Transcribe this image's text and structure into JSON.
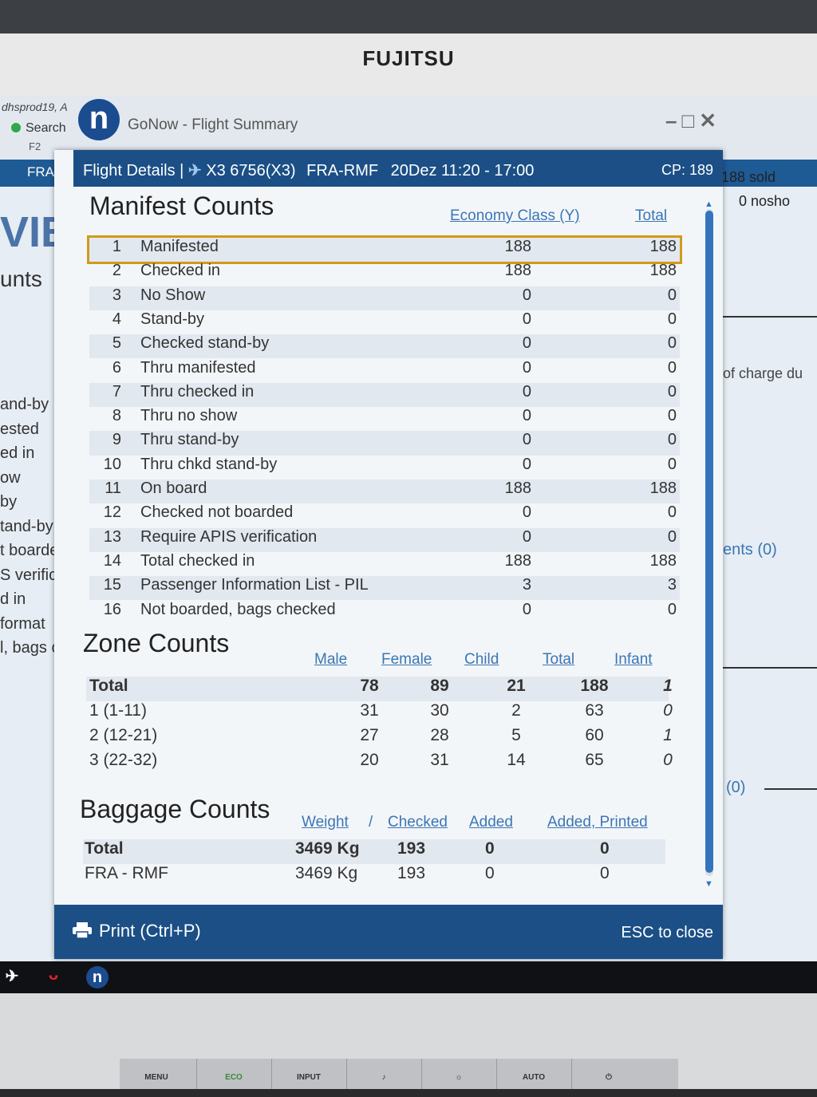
{
  "bezel": {
    "brand": "FUJITSU"
  },
  "background_app": {
    "user": "dhsprod19, A",
    "search": "Search",
    "search_key": "F2",
    "app_title": "GoNow - Flight Summary",
    "route": "FRA-R",
    "sold": "188 sold",
    "nosho": "0 nosho",
    "heading_fragment": "VIE",
    "counts_fragment": "unts",
    "left_fragments": [
      "and-by",
      "ested",
      "ed in",
      "ow",
      "by",
      "tand-by",
      "t boarde",
      "S verific",
      "d in",
      "format",
      "l, bags c"
    ],
    "right_fragment_charge": "of charge du",
    "right_fragment_ents": "ents (0)",
    "right_fragment_zero": "(0)"
  },
  "dialog": {
    "title_prefix": "Flight Details |",
    "flight": "X3 6756(X3)",
    "route": "FRA-RMF",
    "datetime": "20Dez 11:20 - 17:00",
    "cp": "CP: 189",
    "manifest": {
      "title": "Manifest Counts",
      "col_economy": "Economy Class (Y)",
      "col_total": "Total",
      "rows": [
        {
          "n": "1",
          "label": "Manifested",
          "economy": "188",
          "total": "188"
        },
        {
          "n": "2",
          "label": "Checked in",
          "economy": "188",
          "total": "188"
        },
        {
          "n": "3",
          "label": "No Show",
          "economy": "0",
          "total": "0"
        },
        {
          "n": "4",
          "label": "Stand-by",
          "economy": "0",
          "total": "0"
        },
        {
          "n": "5",
          "label": "Checked stand-by",
          "economy": "0",
          "total": "0"
        },
        {
          "n": "6",
          "label": "Thru manifested",
          "economy": "0",
          "total": "0"
        },
        {
          "n": "7",
          "label": "Thru checked in",
          "economy": "0",
          "total": "0"
        },
        {
          "n": "8",
          "label": "Thru no show",
          "economy": "0",
          "total": "0"
        },
        {
          "n": "9",
          "label": "Thru stand-by",
          "economy": "0",
          "total": "0"
        },
        {
          "n": "10",
          "label": "Thru chkd stand-by",
          "economy": "0",
          "total": "0"
        },
        {
          "n": "11",
          "label": "On board",
          "economy": "188",
          "total": "188"
        },
        {
          "n": "12",
          "label": "Checked not boarded",
          "economy": "0",
          "total": "0"
        },
        {
          "n": "13",
          "label": "Require APIS verification",
          "economy": "0",
          "total": "0"
        },
        {
          "n": "14",
          "label": "Total checked in",
          "economy": "188",
          "total": "188"
        },
        {
          "n": "15",
          "label": "Passenger Information List - PIL",
          "economy": "3",
          "total": "3"
        },
        {
          "n": "16",
          "label": "Not boarded, bags checked",
          "economy": "0",
          "total": "0"
        }
      ]
    },
    "zone": {
      "title": "Zone Counts",
      "headers": [
        "Male",
        "Female",
        "Child",
        "Total",
        "Infant"
      ],
      "rows": [
        {
          "label": "Total",
          "male": "78",
          "female": "89",
          "child": "21",
          "total": "188",
          "infant": "1"
        },
        {
          "label": "1 (1-11)",
          "male": "31",
          "female": "30",
          "child": "2",
          "total": "63",
          "infant": "0"
        },
        {
          "label": "2 (12-21)",
          "male": "27",
          "female": "28",
          "child": "5",
          "total": "60",
          "infant": "1"
        },
        {
          "label": "3 (22-32)",
          "male": "20",
          "female": "31",
          "child": "14",
          "total": "65",
          "infant": "0"
        }
      ]
    },
    "baggage": {
      "title": "Baggage Counts",
      "headers": [
        "Weight",
        "/",
        "Checked",
        "Added",
        "Added, Printed"
      ],
      "rows": [
        {
          "label": "Total",
          "weight": "3469 Kg",
          "checked": "193",
          "added": "0",
          "added_printed": "0"
        },
        {
          "label": "FRA - RMF",
          "weight": "3469 Kg",
          "checked": "193",
          "added": "0",
          "added_printed": "0"
        }
      ]
    },
    "footer": {
      "print": "Print (Ctrl+P)",
      "esc": "ESC to close"
    }
  },
  "monitor_buttons": [
    "MENU",
    "ECO",
    "INPUT",
    "AUTO"
  ]
}
